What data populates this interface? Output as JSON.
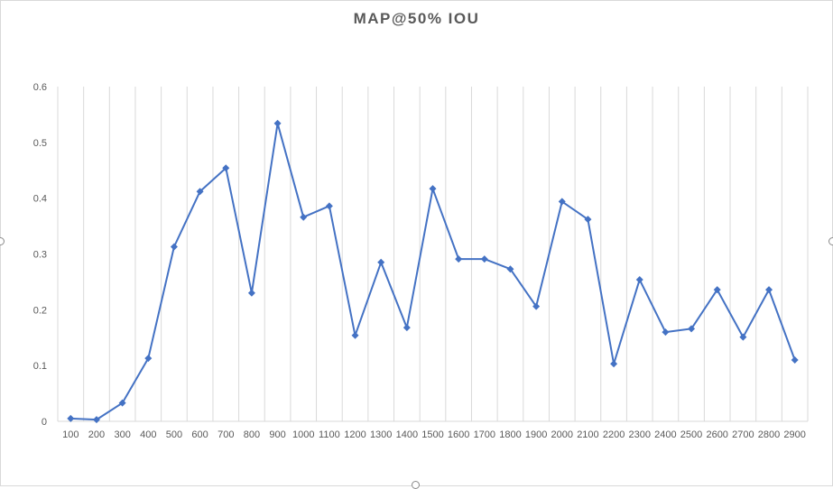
{
  "chart_data": {
    "type": "line",
    "title": "MAP@50% IOU",
    "xlabel": "",
    "ylabel": "",
    "categories": [
      "100",
      "200",
      "300",
      "400",
      "500",
      "600",
      "700",
      "800",
      "900",
      "1000",
      "1100",
      "1200",
      "1300",
      "1400",
      "1500",
      "1600",
      "1700",
      "1800",
      "1900",
      "2000",
      "2100",
      "2200",
      "2300",
      "2400",
      "2500",
      "2600",
      "2700",
      "2800",
      "2900"
    ],
    "series": [
      {
        "values": [
          0.005,
          0.003,
          0.033,
          0.113,
          0.313,
          0.412,
          0.454,
          0.23,
          0.534,
          0.366,
          0.386,
          0.154,
          0.285,
          0.168,
          0.417,
          0.291,
          0.291,
          0.273,
          0.206,
          0.394,
          0.362,
          0.103,
          0.254,
          0.16,
          0.166,
          0.236,
          0.151,
          0.236,
          0.11
        ],
        "color": "#4472c4",
        "marker": "diamond"
      }
    ],
    "ylim": [
      0,
      0.6
    ],
    "yticks": [
      "0",
      "0.1",
      "0.2",
      "0.3",
      "0.4",
      "0.5",
      "0.6"
    ],
    "grid": "vertical",
    "legend": "none"
  }
}
